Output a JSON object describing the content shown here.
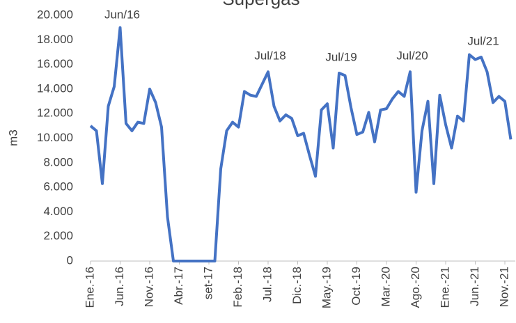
{
  "chart_data": {
    "type": "line",
    "title": "Supergas",
    "y_label": "m3",
    "categories": [
      "Ene.-16",
      null,
      null,
      null,
      null,
      "Jun.-16",
      null,
      null,
      null,
      null,
      "Nov.-16",
      null,
      null,
      null,
      null,
      "Abr.-17",
      null,
      null,
      null,
      null,
      "set-17",
      null,
      null,
      null,
      null,
      "Feb.-18",
      null,
      null,
      null,
      null,
      "Jul.-18",
      null,
      null,
      null,
      null,
      "Dic.-18",
      null,
      null,
      null,
      null,
      "May.-19",
      null,
      null,
      null,
      null,
      "Oct.-19",
      null,
      null,
      null,
      null,
      "Mar.-20",
      null,
      null,
      null,
      null,
      "Ago.-20",
      null,
      null,
      null,
      null,
      "Ene.-21",
      null,
      null,
      null,
      null,
      "Jun.-21",
      null,
      null,
      null,
      null,
      "Nov.-21",
      null
    ],
    "series": [
      {
        "name": "Supergas",
        "color": "#4472c4",
        "values": [
          11000,
          10600,
          6300,
          12600,
          14200,
          19000,
          11200,
          10600,
          11300,
          11200,
          14000,
          12900,
          10900,
          3600,
          0,
          0,
          0,
          0,
          0,
          0,
          0,
          0,
          7500,
          10600,
          11300,
          10900,
          13800,
          13500,
          13400,
          14400,
          15400,
          12600,
          11400,
          11900,
          11600,
          10200,
          10400,
          8600,
          6900,
          12300,
          12800,
          9200,
          15300,
          15100,
          12500,
          10300,
          10500,
          12100,
          9700,
          12300,
          12400,
          13200,
          13800,
          13400,
          15400,
          5600,
          10600,
          13000,
          6300,
          13500,
          11100,
          9200,
          11800,
          11400,
          16800,
          16400,
          16600,
          15400,
          12900,
          13400,
          13000,
          9900
        ]
      }
    ],
    "annotations": [
      {
        "text": "Jun/16",
        "point": 5
      },
      {
        "text": "Jul/18",
        "point": 30
      },
      {
        "text": "Jul/19",
        "point": 42
      },
      {
        "text": "Jul/20",
        "point": 54
      },
      {
        "text": "Jul/21",
        "point": 66
      }
    ],
    "ylim": [
      0,
      20000
    ],
    "yticks": [
      0,
      {
        "value": 2000,
        "label": "2.000"
      },
      {
        "value": 4000,
        "label": "4.000"
      },
      {
        "value": 6000,
        "label": "6.000"
      },
      {
        "value": 8000,
        "label": "8.000"
      },
      {
        "value": 10000,
        "label": "10.000"
      },
      {
        "value": 12000,
        "label": "12.000"
      },
      {
        "value": 14000,
        "label": "14.000"
      },
      {
        "value": 16000,
        "label": "16.000"
      },
      {
        "value": 18000,
        "label": "18.000"
      },
      {
        "value": 20000,
        "label": "20.000"
      }
    ],
    "grid": false
  }
}
